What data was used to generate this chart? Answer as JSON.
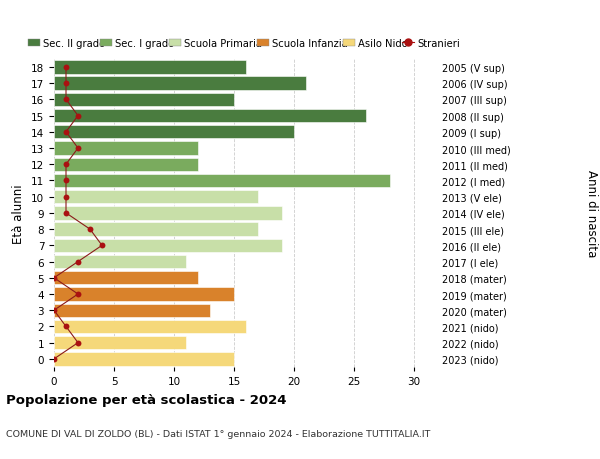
{
  "ages": [
    18,
    17,
    16,
    15,
    14,
    13,
    12,
    11,
    10,
    9,
    8,
    7,
    6,
    5,
    4,
    3,
    2,
    1,
    0
  ],
  "years": [
    "2005 (V sup)",
    "2006 (IV sup)",
    "2007 (III sup)",
    "2008 (II sup)",
    "2009 (I sup)",
    "2010 (III med)",
    "2011 (II med)",
    "2012 (I med)",
    "2013 (V ele)",
    "2014 (IV ele)",
    "2015 (III ele)",
    "2016 (II ele)",
    "2017 (I ele)",
    "2018 (mater)",
    "2019 (mater)",
    "2020 (mater)",
    "2021 (nido)",
    "2022 (nido)",
    "2023 (nido)"
  ],
  "bar_values": [
    16,
    21,
    15,
    26,
    20,
    12,
    12,
    28,
    17,
    19,
    17,
    19,
    11,
    12,
    15,
    13,
    16,
    11,
    15
  ],
  "bar_colors": [
    "#4a7c3f",
    "#4a7c3f",
    "#4a7c3f",
    "#4a7c3f",
    "#4a7c3f",
    "#7aab5e",
    "#7aab5e",
    "#7aab5e",
    "#c8dfa8",
    "#c8dfa8",
    "#c8dfa8",
    "#c8dfa8",
    "#c8dfa8",
    "#d9822b",
    "#d9822b",
    "#d9822b",
    "#f5d87a",
    "#f5d87a",
    "#f5d87a"
  ],
  "stranieri_values": [
    1,
    1,
    1,
    2,
    1,
    2,
    1,
    1,
    1,
    1,
    3,
    4,
    2,
    0,
    2,
    0,
    1,
    2,
    0
  ],
  "xlim": [
    0,
    32
  ],
  "xticks": [
    0,
    5,
    10,
    15,
    20,
    25,
    30
  ],
  "title": "Popolazione per età scolastica - 2024",
  "subtitle": "COMUNE DI VAL DI ZOLDO (BL) - Dati ISTAT 1° gennaio 2024 - Elaborazione TUTTITALIA.IT",
  "ylabel_left": "Età alunni",
  "ylabel_right": "Anni di nascita",
  "legend_labels": [
    "Sec. II grado",
    "Sec. I grado",
    "Scuola Primaria",
    "Scuola Infanzia",
    "Asilo Nido",
    "Stranieri"
  ],
  "legend_colors": [
    "#4a7c3f",
    "#7aab5e",
    "#c8dfa8",
    "#d9822b",
    "#f5d87a",
    "#aa1111"
  ],
  "bg_color": "#ffffff",
  "grid_color": "#cccccc"
}
